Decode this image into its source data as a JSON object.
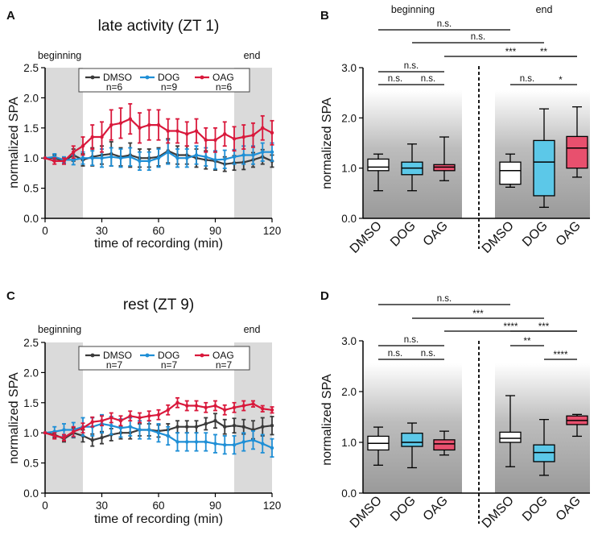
{
  "figure": {
    "panels": [
      {
        "letter": "A",
        "title": "late activity (ZT 1)",
        "xlabel": "time of recording (min)",
        "ylabel": "normalized SPA",
        "beginning_label": "beginning",
        "end_label": "end"
      },
      {
        "letter": "B",
        "ylabel": "normalized SPA",
        "beginning_label": "beginning",
        "end_label": "end"
      },
      {
        "letter": "C",
        "title": "rest (ZT 9)",
        "xlabel": "time of recording (min)",
        "ylabel": "normalized SPA",
        "beginning_label": "beginning",
        "end_label": "end"
      },
      {
        "letter": "D",
        "ylabel": "normalized SPA",
        "beginning_label": "beginning",
        "end_label": "end"
      }
    ]
  },
  "colors": {
    "dmso": "#3a3a3a",
    "dog": "#1f8fd6",
    "oag": "#d9183b",
    "box_dmso": "#ffffff",
    "box_dog": "#5cc8e8",
    "box_oag": "#e8506e",
    "shade": "#dadada"
  },
  "chart_data": [
    {
      "panel": "A",
      "type": "line",
      "title": "late activity (ZT 1)",
      "xlabel": "time of recording (min)",
      "ylabel": "normalized SPA",
      "xlim": [
        0,
        120
      ],
      "ylim": [
        0,
        2.5
      ],
      "xticks": [
        "0",
        "30",
        "60",
        "90",
        "120"
      ],
      "yticks": [
        "0.0",
        "0.5",
        "1.0",
        "1.5",
        "2.0",
        "2.5"
      ],
      "shaded_regions": [
        [
          0,
          20
        ],
        [
          100,
          120
        ]
      ],
      "x": [
        0,
        5,
        10,
        15,
        20,
        25,
        30,
        35,
        40,
        45,
        50,
        55,
        60,
        65,
        70,
        75,
        80,
        85,
        90,
        95,
        100,
        105,
        110,
        115,
        120
      ],
      "series": [
        {
          "name": "DMSO",
          "n": "n=6",
          "values": [
            1.0,
            1.0,
            0.95,
            1.05,
            0.97,
            1.02,
            1.05,
            1.07,
            1.02,
            1.05,
            1.0,
            1.0,
            1.02,
            1.12,
            1.05,
            1.05,
            1.0,
            0.97,
            0.95,
            0.9,
            0.92,
            0.93,
            0.97,
            1.02,
            0.95
          ],
          "errors": [
            0,
            0.05,
            0.05,
            0.1,
            0.1,
            0.15,
            0.15,
            0.2,
            0.15,
            0.2,
            0.15,
            0.15,
            0.15,
            0.2,
            0.15,
            0.15,
            0.15,
            0.15,
            0.15,
            0.12,
            0.12,
            0.12,
            0.12,
            0.12,
            0.1
          ]
        },
        {
          "name": "DOG",
          "n": "n=9",
          "values": [
            1.0,
            1.02,
            0.97,
            0.97,
            1.0,
            1.0,
            1.0,
            1.02,
            1.0,
            1.02,
            0.95,
            0.95,
            1.0,
            1.1,
            1.0,
            1.0,
            1.05,
            1.02,
            0.97,
            0.98,
            1.02,
            1.05,
            1.05,
            1.1,
            1.1
          ],
          "errors": [
            0,
            0.05,
            0.05,
            0.08,
            0.1,
            0.12,
            0.15,
            0.15,
            0.15,
            0.15,
            0.15,
            0.15,
            0.15,
            0.2,
            0.15,
            0.15,
            0.15,
            0.15,
            0.15,
            0.15,
            0.12,
            0.15,
            0.15,
            0.15,
            0.15
          ]
        },
        {
          "name": "OAG",
          "n": "n=6",
          "values": [
            1.0,
            0.95,
            0.95,
            1.1,
            1.2,
            1.35,
            1.35,
            1.55,
            1.58,
            1.65,
            1.5,
            1.55,
            1.55,
            1.45,
            1.45,
            1.4,
            1.45,
            1.3,
            1.3,
            1.4,
            1.32,
            1.35,
            1.38,
            1.5,
            1.42
          ],
          "errors": [
            0,
            0.05,
            0.05,
            0.1,
            0.15,
            0.2,
            0.25,
            0.25,
            0.25,
            0.25,
            0.25,
            0.25,
            0.25,
            0.2,
            0.2,
            0.2,
            0.2,
            0.2,
            0.2,
            0.2,
            0.2,
            0.2,
            0.2,
            0.2,
            0.2
          ]
        }
      ]
    },
    {
      "panel": "B",
      "type": "boxplot",
      "ylabel": "normalized SPA",
      "ylim": [
        0,
        3.0
      ],
      "yticks": [
        "0.0",
        "1.0",
        "2.0",
        "3.0"
      ],
      "group_labels": [
        "beginning",
        "end"
      ],
      "categories": [
        "DMSO",
        "DOG",
        "OAG",
        "DMSO",
        "DOG",
        "OAG"
      ],
      "boxes": [
        {
          "group": "beginning",
          "name": "DMSO",
          "min": 0.55,
          "q1": 0.95,
          "median": 1.02,
          "q3": 1.18,
          "max": 1.28
        },
        {
          "group": "beginning",
          "name": "DOG",
          "min": 0.55,
          "q1": 0.87,
          "median": 1.0,
          "q3": 1.12,
          "max": 1.48
        },
        {
          "group": "beginning",
          "name": "OAG",
          "min": 0.75,
          "q1": 0.95,
          "median": 1.02,
          "q3": 1.07,
          "max": 1.62
        },
        {
          "group": "end",
          "name": "DMSO",
          "min": 0.62,
          "q1": 0.68,
          "median": 0.95,
          "q3": 1.12,
          "max": 1.28
        },
        {
          "group": "end",
          "name": "DOG",
          "min": 0.22,
          "q1": 0.45,
          "median": 1.12,
          "q3": 1.55,
          "max": 2.18
        },
        {
          "group": "end",
          "name": "OAG",
          "min": 0.82,
          "q1": 1.0,
          "median": 1.4,
          "q3": 1.63,
          "max": 2.22
        }
      ],
      "significance": [
        {
          "pair": [
            0,
            3
          ],
          "label": "n.s."
        },
        {
          "pair": [
            1,
            4
          ],
          "label": "n.s."
        },
        {
          "pair": [
            2,
            5
          ],
          "label": "***"
        },
        {
          "pair": [
            0,
            2
          ],
          "label": "n.s."
        },
        {
          "pair": [
            0,
            1
          ],
          "label": "n.s."
        },
        {
          "pair": [
            1,
            2
          ],
          "label": "n.s."
        },
        {
          "pair": [
            3,
            5
          ],
          "label": "**"
        },
        {
          "pair": [
            3,
            4
          ],
          "label": "n.s."
        },
        {
          "pair": [
            4,
            5
          ],
          "label": "*"
        }
      ]
    },
    {
      "panel": "C",
      "type": "line",
      "title": "rest (ZT 9)",
      "xlabel": "time of recording (min)",
      "ylabel": "normalized SPA",
      "xlim": [
        0,
        120
      ],
      "ylim": [
        0,
        2.5
      ],
      "xticks": [
        "0",
        "30",
        "60",
        "90",
        "120"
      ],
      "yticks": [
        "0.0",
        "0.5",
        "1.0",
        "1.5",
        "2.0",
        "2.5"
      ],
      "shaded_regions": [
        [
          0,
          20
        ],
        [
          100,
          120
        ]
      ],
      "x": [
        0,
        5,
        10,
        15,
        20,
        25,
        30,
        35,
        40,
        45,
        50,
        55,
        60,
        65,
        70,
        75,
        80,
        85,
        90,
        95,
        100,
        105,
        110,
        115,
        120
      ],
      "series": [
        {
          "name": "DMSO",
          "n": "n=7",
          "values": [
            1.0,
            0.97,
            0.9,
            1.0,
            0.95,
            0.88,
            0.92,
            0.97,
            1.0,
            1.0,
            1.05,
            1.05,
            1.03,
            1.05,
            1.1,
            1.1,
            1.1,
            1.15,
            1.2,
            1.1,
            1.12,
            1.1,
            1.05,
            1.1,
            1.12
          ],
          "errors": [
            0,
            0.05,
            0.05,
            0.08,
            0.1,
            0.1,
            0.1,
            0.1,
            0.1,
            0.1,
            0.1,
            0.1,
            0.1,
            0.1,
            0.1,
            0.1,
            0.1,
            0.1,
            0.12,
            0.12,
            0.12,
            0.12,
            0.15,
            0.15,
            0.15
          ]
        },
        {
          "name": "DOG",
          "n": "n=7",
          "values": [
            1.0,
            1.02,
            1.05,
            1.05,
            1.1,
            1.1,
            1.15,
            1.12,
            1.08,
            1.1,
            1.05,
            1.05,
            1.0,
            0.95,
            0.85,
            0.85,
            0.85,
            0.85,
            0.82,
            0.8,
            0.8,
            0.85,
            0.88,
            0.82,
            0.75
          ],
          "errors": [
            0,
            0.08,
            0.1,
            0.12,
            0.15,
            0.15,
            0.15,
            0.15,
            0.15,
            0.15,
            0.15,
            0.15,
            0.15,
            0.15,
            0.15,
            0.15,
            0.15,
            0.15,
            0.15,
            0.15,
            0.15,
            0.15,
            0.15,
            0.15,
            0.15
          ]
        },
        {
          "name": "OAG",
          "n": "n=7",
          "values": [
            1.0,
            0.95,
            0.92,
            1.02,
            1.08,
            1.18,
            1.2,
            1.25,
            1.2,
            1.28,
            1.25,
            1.28,
            1.3,
            1.38,
            1.5,
            1.45,
            1.45,
            1.42,
            1.45,
            1.38,
            1.42,
            1.45,
            1.48,
            1.4,
            1.38
          ],
          "errors": [
            0,
            0.05,
            0.05,
            0.08,
            0.08,
            0.08,
            0.08,
            0.08,
            0.08,
            0.08,
            0.08,
            0.08,
            0.08,
            0.08,
            0.08,
            0.08,
            0.08,
            0.08,
            0.08,
            0.08,
            0.08,
            0.08,
            0.05,
            0.05,
            0.05
          ]
        }
      ]
    },
    {
      "panel": "D",
      "type": "boxplot",
      "ylabel": "normalized SPA",
      "ylim": [
        0,
        3.0
      ],
      "yticks": [
        "0.0",
        "1.0",
        "2.0",
        "3.0"
      ],
      "group_labels": [
        "beginning",
        "end"
      ],
      "categories": [
        "DMSO",
        "DOG",
        "OAG",
        "DMSO",
        "DOG",
        "OAG"
      ],
      "boxes": [
        {
          "group": "beginning",
          "name": "DMSO",
          "min": 0.55,
          "q1": 0.85,
          "median": 0.98,
          "q3": 1.12,
          "max": 1.3
        },
        {
          "group": "beginning",
          "name": "DOG",
          "min": 0.5,
          "q1": 0.92,
          "median": 1.0,
          "q3": 1.18,
          "max": 1.38
        },
        {
          "group": "beginning",
          "name": "OAG",
          "min": 0.75,
          "q1": 0.85,
          "median": 0.97,
          "q3": 1.05,
          "max": 1.22
        },
        {
          "group": "end",
          "name": "DMSO",
          "min": 0.52,
          "q1": 1.0,
          "median": 1.08,
          "q3": 1.2,
          "max": 1.92
        },
        {
          "group": "end",
          "name": "DOG",
          "min": 0.35,
          "q1": 0.62,
          "median": 0.8,
          "q3": 0.95,
          "max": 1.45
        },
        {
          "group": "end",
          "name": "OAG",
          "min": 1.12,
          "q1": 1.35,
          "median": 1.43,
          "q3": 1.52,
          "max": 1.55
        }
      ],
      "significance": [
        {
          "pair": [
            0,
            3
          ],
          "label": "n.s."
        },
        {
          "pair": [
            1,
            4
          ],
          "label": "***"
        },
        {
          "pair": [
            2,
            5
          ],
          "label": "****"
        },
        {
          "pair": [
            0,
            2
          ],
          "label": "n.s."
        },
        {
          "pair": [
            0,
            1
          ],
          "label": "n.s."
        },
        {
          "pair": [
            1,
            2
          ],
          "label": "n.s."
        },
        {
          "pair": [
            3,
            5
          ],
          "label": "***"
        },
        {
          "pair": [
            3,
            4
          ],
          "label": "**"
        },
        {
          "pair": [
            4,
            5
          ],
          "label": "****"
        }
      ]
    }
  ]
}
